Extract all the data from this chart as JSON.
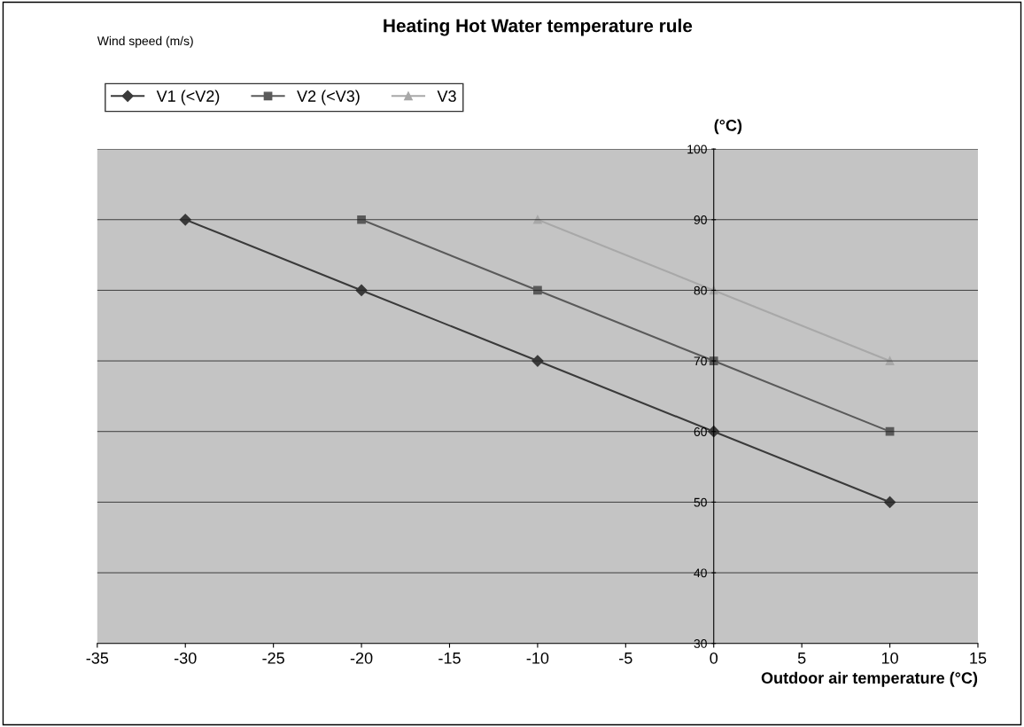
{
  "chart_data": {
    "type": "line",
    "title": "Heating Hot Water temperature rule",
    "xlabel": "Outdoor air temperature (°C)",
    "ylabel": "(°C)",
    "legend_title": "Wind speed (m/s)",
    "series": [
      {
        "name": "V1 (<V2)",
        "color": "#3a3a3a",
        "marker": "diamond",
        "x": [
          -30,
          -20,
          -10,
          0,
          10
        ],
        "values": [
          90,
          80,
          70,
          60,
          50
        ]
      },
      {
        "name": "V2 (<V3)",
        "color": "#5a5a5a",
        "marker": "square",
        "x": [
          -20,
          -10,
          0,
          10
        ],
        "values": [
          90,
          80,
          70,
          60
        ]
      },
      {
        "name": "V3",
        "color": "#a8a8a8",
        "marker": "triangle",
        "x": [
          -10,
          0,
          10
        ],
        "values": [
          90,
          80,
          70
        ]
      }
    ],
    "xlim": [
      -35,
      15
    ],
    "xticks": [
      -35,
      -30,
      -25,
      -20,
      -15,
      -10,
      -5,
      0,
      5,
      10,
      15
    ],
    "ylim": [
      30,
      100
    ],
    "yticks": [
      30,
      40,
      50,
      60,
      70,
      80,
      90,
      100
    ],
    "grid": "y",
    "legend": "top left",
    "line_style": "solid"
  }
}
